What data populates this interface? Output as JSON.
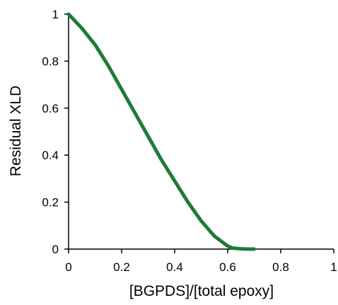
{
  "chart_data": {
    "type": "line",
    "title": "",
    "xlabel": "[BGPDS]/[total epoxy]",
    "ylabel": "Residual XLD",
    "xlim": [
      0,
      1
    ],
    "ylim": [
      0,
      1
    ],
    "xticks": [
      "0",
      "0.2",
      "0.4",
      "0.6",
      "0.8",
      "1"
    ],
    "yticks": [
      "0",
      "0.2",
      "0.4",
      "0.6",
      "0.8",
      "1"
    ],
    "grid": false,
    "legend": "none",
    "series": [
      {
        "color": "#1f7a3a",
        "x": [
          0,
          0.05,
          0.1,
          0.15,
          0.2,
          0.25,
          0.3,
          0.35,
          0.4,
          0.45,
          0.5,
          0.55,
          0.6,
          0.62,
          0.65,
          0.68,
          0.7
        ],
        "y": [
          1.0,
          0.94,
          0.87,
          0.78,
          0.68,
          0.58,
          0.48,
          0.38,
          0.29,
          0.2,
          0.12,
          0.055,
          0.013,
          0.004,
          0.001,
          0.0,
          0.0
        ]
      }
    ]
  }
}
